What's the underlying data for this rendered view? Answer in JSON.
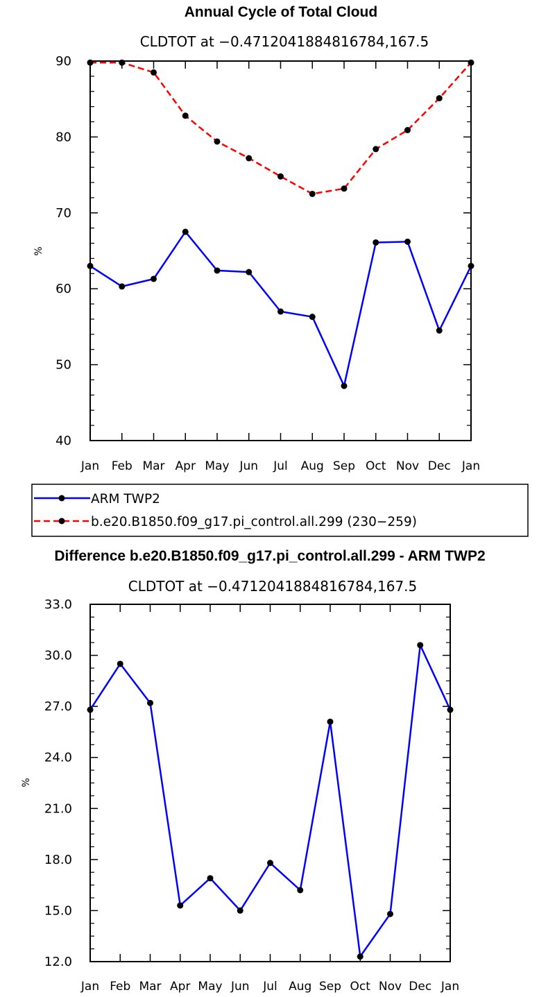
{
  "chart_data": [
    {
      "type": "line",
      "title": "Annual Cycle of Total Cloud",
      "subtitle": "CLDTOT at −0.4712041884816784,167.5",
      "ylabel": "%",
      "xlabel": "",
      "ylim": [
        40,
        90
      ],
      "yticks": [
        "40",
        "50",
        "60",
        "70",
        "80",
        "90"
      ],
      "categories": [
        "Jan",
        "Feb",
        "Mar",
        "Apr",
        "May",
        "Jun",
        "Jul",
        "Aug",
        "Sep",
        "Oct",
        "Nov",
        "Dec",
        "Jan"
      ],
      "series": [
        {
          "name": "ARM TWP2",
          "color": "#0000ff",
          "dash": "solid",
          "values": [
            63.0,
            60.3,
            61.3,
            67.5,
            62.4,
            62.2,
            57.0,
            56.3,
            47.2,
            66.1,
            66.2,
            54.5,
            63.0
          ]
        },
        {
          "name": "b.e20.B1850.f09_g17.pi_control.all.299 (230−259)",
          "color": "#ff0000",
          "dash": "dashed",
          "values": [
            89.8,
            89.8,
            88.5,
            82.8,
            79.4,
            77.2,
            74.8,
            72.5,
            73.2,
            78.4,
            80.9,
            85.1,
            89.8
          ]
        }
      ],
      "legend": {
        "placement": "below"
      }
    },
    {
      "type": "line",
      "title": "Difference b.e20.B1850.f09_g17.pi_control.all.299 - ARM TWP2",
      "subtitle": "CLDTOT at −0.4712041884816784,167.5",
      "ylabel": "%",
      "xlabel": "",
      "ylim": [
        12,
        33
      ],
      "yticks": [
        "12.0",
        "15.0",
        "18.0",
        "21.0",
        "24.0",
        "27.0",
        "30.0",
        "33.0"
      ],
      "categories": [
        "Jan",
        "Feb",
        "Mar",
        "Apr",
        "May",
        "Jun",
        "Jul",
        "Aug",
        "Sep",
        "Oct",
        "Nov",
        "Dec",
        "Jan"
      ],
      "series": [
        {
          "name": "Difference",
          "color": "#0000ff",
          "dash": "solid",
          "values": [
            26.8,
            29.5,
            27.2,
            15.3,
            16.9,
            15.0,
            17.8,
            16.2,
            26.1,
            12.3,
            14.8,
            30.6,
            26.8
          ]
        }
      ]
    }
  ]
}
